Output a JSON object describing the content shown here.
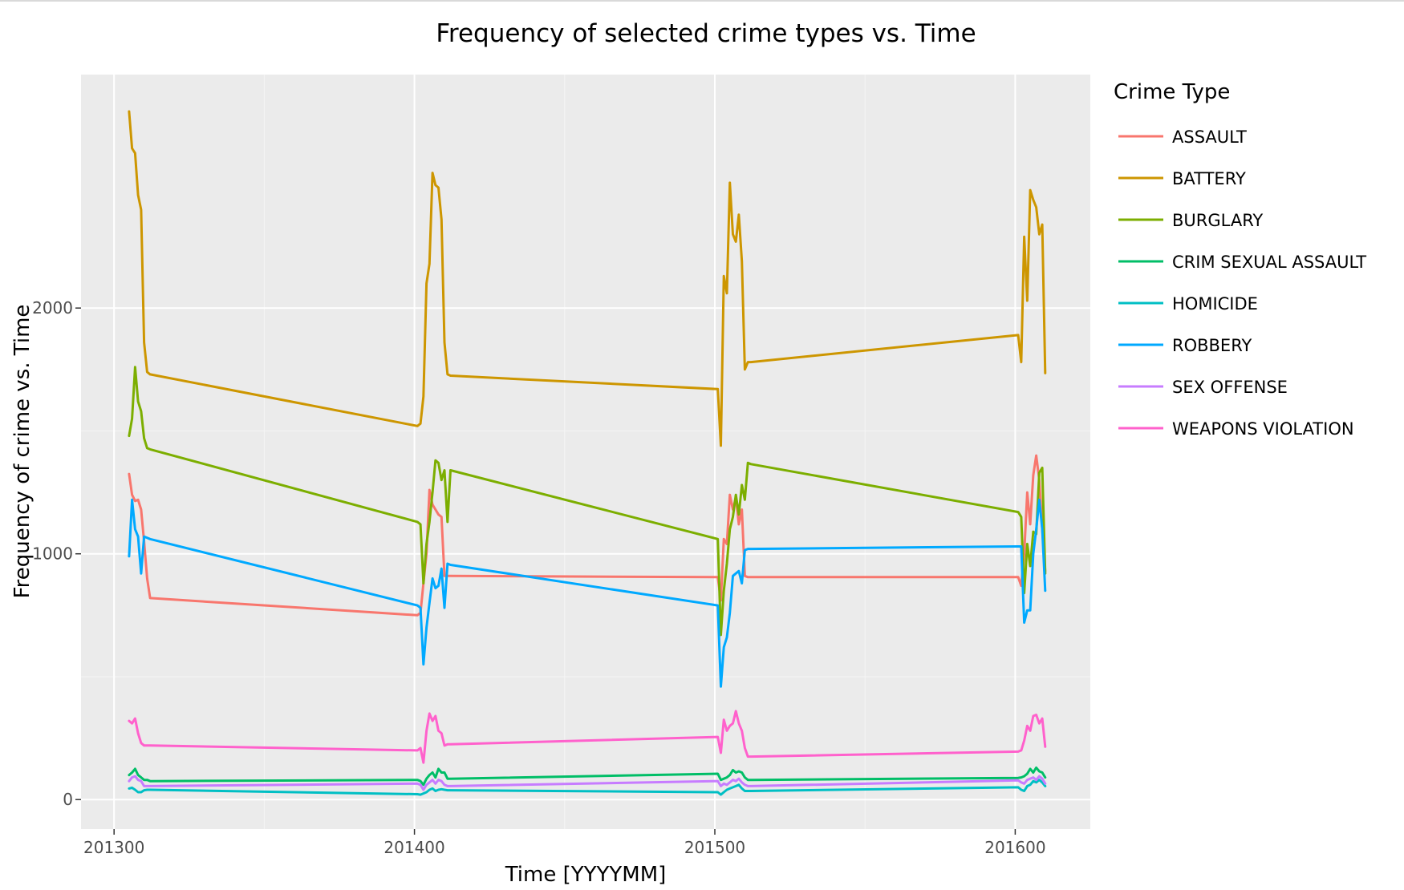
{
  "chart_data": {
    "type": "line",
    "title": "Frequency of selected crime types vs. Time",
    "xlabel": "Time [YYYYMM]",
    "ylabel": "Frequency of crime vs. Time",
    "xticks": [
      "201300",
      "201400",
      "201500",
      "201600"
    ],
    "yticks": [
      "0",
      "1000",
      "2000"
    ],
    "xlim": [
      201289,
      201625
    ],
    "ylim": [
      -120,
      2950
    ],
    "grid": true,
    "legend": {
      "title": "Crime Type",
      "position": "right"
    },
    "series": [
      {
        "name": "ASSAULT",
        "color": "#F8766D",
        "x": [
          201305,
          201306,
          201307,
          201308,
          201309,
          201310,
          201311,
          201312,
          201401,
          201402,
          201403,
          201404,
          201405,
          201406,
          201407,
          201408,
          201409,
          201410,
          201411,
          201412,
          201501,
          201502,
          201503,
          201504,
          201505,
          201506,
          201507,
          201508,
          201509,
          201510,
          201511,
          201512,
          201601,
          201602,
          201603,
          201604,
          201605,
          201606,
          201607,
          201608,
          201609,
          201610
        ],
        "y": [
          1325,
          1240,
          1215,
          1220,
          1180,
          1050,
          900,
          820,
          750,
          760,
          880,
          1000,
          1260,
          1200,
          1180,
          1160,
          1150,
          910,
          910,
          910,
          905,
          810,
          1060,
          1040,
          1240,
          1180,
          1230,
          1120,
          1180,
          910,
          905,
          905,
          905,
          870,
          1000,
          1250,
          1120,
          1320,
          1400,
          1300,
          1100,
          930
        ]
      },
      {
        "name": "BATTERY",
        "color": "#CD9600",
        "x": [
          201305,
          201306,
          201307,
          201308,
          201309,
          201310,
          201311,
          201312,
          201401,
          201402,
          201403,
          201404,
          201405,
          201406,
          201407,
          201408,
          201409,
          201410,
          201411,
          201412,
          201501,
          201502,
          201503,
          201504,
          201505,
          201506,
          201507,
          201508,
          201509,
          201510,
          201511,
          201512,
          201601,
          201602,
          201603,
          201604,
          201605,
          201606,
          201607,
          201608,
          201609,
          201610
        ],
        "y": [
          2800,
          2650,
          2630,
          2460,
          2400,
          1860,
          1740,
          1730,
          1520,
          1530,
          1640,
          2100,
          2180,
          2550,
          2500,
          2490,
          2360,
          1860,
          1730,
          1725,
          1670,
          1440,
          2130,
          2060,
          2510,
          2300,
          2270,
          2380,
          2190,
          1750,
          1780,
          1780,
          1890,
          1780,
          2290,
          2030,
          2480,
          2440,
          2410,
          2300,
          2340,
          1735
        ]
      },
      {
        "name": "BURGLARY",
        "color": "#7CAE00",
        "x": [
          201305,
          201306,
          201307,
          201308,
          201309,
          201310,
          201311,
          201312,
          201401,
          201402,
          201403,
          201404,
          201405,
          201406,
          201407,
          201408,
          201409,
          201410,
          201411,
          201412,
          201501,
          201502,
          201503,
          201504,
          201505,
          201506,
          201507,
          201508,
          201509,
          201510,
          201511,
          201512,
          201601,
          201602,
          201603,
          201604,
          201605,
          201606,
          201607,
          201608,
          201609,
          201610
        ],
        "y": [
          1480,
          1550,
          1760,
          1620,
          1580,
          1470,
          1430,
          1425,
          1130,
          1120,
          880,
          1040,
          1130,
          1250,
          1380,
          1370,
          1300,
          1340,
          1130,
          1340,
          1060,
          670,
          850,
          960,
          1100,
          1150,
          1240,
          1160,
          1280,
          1220,
          1370,
          1365,
          1170,
          1150,
          840,
          1040,
          950,
          1090,
          1080,
          1330,
          1350,
          920
        ]
      },
      {
        "name": "CRIM SEXUAL ASSAULT",
        "color": "#00BE67",
        "x": [
          201305,
          201306,
          201307,
          201308,
          201309,
          201310,
          201311,
          201312,
          201401,
          201402,
          201403,
          201404,
          201405,
          201406,
          201407,
          201408,
          201409,
          201410,
          201411,
          201412,
          201501,
          201502,
          201503,
          201504,
          201505,
          201506,
          201507,
          201508,
          201509,
          201510,
          201511,
          201512,
          201601,
          201602,
          201603,
          201604,
          201605,
          201606,
          201607,
          201608,
          201609,
          201610
        ],
        "y": [
          100,
          110,
          125,
          100,
          90,
          80,
          80,
          75,
          80,
          75,
          60,
          85,
          100,
          110,
          90,
          125,
          110,
          110,
          85,
          85,
          105,
          80,
          85,
          90,
          100,
          120,
          110,
          115,
          110,
          90,
          80,
          80,
          88,
          90,
          95,
          105,
          125,
          110,
          130,
          115,
          110,
          90
        ]
      },
      {
        "name": "HOMICIDE",
        "color": "#00BFC4",
        "x": [
          201305,
          201306,
          201307,
          201308,
          201309,
          201310,
          201311,
          201312,
          201401,
          201402,
          201403,
          201404,
          201405,
          201406,
          201407,
          201408,
          201409,
          201410,
          201411,
          201412,
          201501,
          201502,
          201503,
          201504,
          201505,
          201506,
          201507,
          201508,
          201509,
          201510,
          201511,
          201512,
          201601,
          201602,
          201603,
          201604,
          201605,
          201606,
          201607,
          201608,
          201609,
          201610
        ],
        "y": [
          45,
          48,
          40,
          30,
          30,
          38,
          40,
          40,
          22,
          20,
          25,
          30,
          40,
          45,
          35,
          40,
          42,
          40,
          38,
          38,
          30,
          20,
          30,
          40,
          45,
          50,
          55,
          60,
          45,
          35,
          35,
          35,
          50,
          40,
          35,
          55,
          60,
          75,
          70,
          80,
          70,
          55
        ]
      },
      {
        "name": "ROBBERY",
        "color": "#00A9FF",
        "x": [
          201305,
          201306,
          201307,
          201308,
          201309,
          201310,
          201311,
          201312,
          201401,
          201402,
          201403,
          201404,
          201405,
          201406,
          201407,
          201408,
          201409,
          201410,
          201411,
          201412,
          201501,
          201502,
          201503,
          201504,
          201505,
          201506,
          201507,
          201508,
          201509,
          201510,
          201511,
          201512,
          201601,
          201602,
          201603,
          201604,
          201605,
          201606,
          201607,
          201608,
          201609,
          201610
        ],
        "y": [
          990,
          1220,
          1100,
          1070,
          920,
          1070,
          1065,
          1060,
          790,
          780,
          550,
          700,
          800,
          900,
          860,
          870,
          940,
          780,
          960,
          955,
          790,
          460,
          620,
          660,
          760,
          910,
          920,
          930,
          880,
          1015,
          1020,
          1020,
          1030,
          1030,
          720,
          770,
          770,
          1000,
          1100,
          1220,
          1100,
          850
        ]
      },
      {
        "name": "SEX OFFENSE",
        "color": "#C77CFF",
        "x": [
          201305,
          201306,
          201307,
          201308,
          201309,
          201310,
          201311,
          201312,
          201401,
          201402,
          201403,
          201404,
          201405,
          201406,
          201407,
          201408,
          201409,
          201410,
          201411,
          201412,
          201501,
          201502,
          201503,
          201504,
          201505,
          201506,
          201507,
          201508,
          201509,
          201510,
          201511,
          201512,
          201601,
          201602,
          201603,
          201604,
          201605,
          201606,
          201607,
          201608,
          201609,
          201610
        ],
        "y": [
          75,
          90,
          95,
          80,
          75,
          55,
          55,
          55,
          65,
          60,
          40,
          60,
          70,
          80,
          65,
          80,
          75,
          60,
          55,
          55,
          75,
          55,
          65,
          60,
          70,
          80,
          75,
          85,
          70,
          60,
          55,
          55,
          78,
          70,
          65,
          80,
          85,
          90,
          80,
          95,
          85,
          65
        ]
      },
      {
        "name": "WEAPONS VIOLATION",
        "color": "#FF61CC",
        "x": [
          201305,
          201306,
          201307,
          201308,
          201309,
          201310,
          201311,
          201312,
          201401,
          201402,
          201403,
          201404,
          201405,
          201406,
          201407,
          201408,
          201409,
          201410,
          201411,
          201412,
          201501,
          201502,
          201503,
          201504,
          201505,
          201506,
          201507,
          201508,
          201509,
          201510,
          201511,
          201512,
          201601,
          201602,
          201603,
          201604,
          201605,
          201606,
          201607,
          201608,
          201609,
          201610
        ],
        "y": [
          320,
          310,
          330,
          270,
          230,
          220,
          220,
          220,
          200,
          210,
          150,
          280,
          350,
          320,
          340,
          280,
          270,
          220,
          225,
          225,
          255,
          190,
          325,
          280,
          300,
          310,
          360,
          310,
          280,
          210,
          175,
          175,
          195,
          200,
          240,
          300,
          280,
          340,
          345,
          310,
          330,
          215
        ]
      }
    ]
  }
}
